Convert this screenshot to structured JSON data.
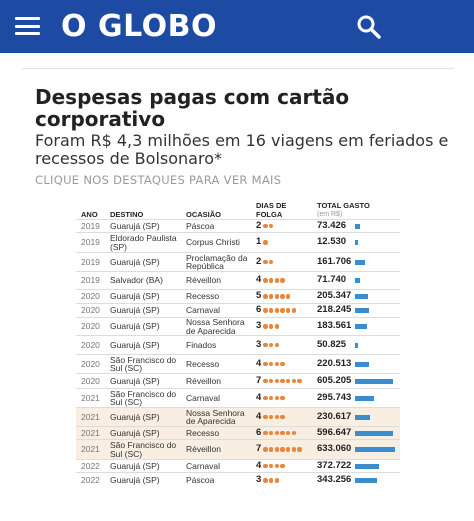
{
  "header": {
    "logo": "O GLOBO",
    "menu_icon": "hamburger-menu-icon",
    "search_icon": "search-icon",
    "bg_color": "#1d4ba3"
  },
  "article": {
    "title": "Despesas pagas com cartão corporativo",
    "subtitle": "Foram R$ 4,3 milhões em 16 viagens em feriados e recessos de Bolsonaro*",
    "hint": "CLIQUE NOS DESTAQUES PARA VER MAIS"
  },
  "table": {
    "columns": {
      "year": "ANO",
      "destination": "DESTINO",
      "occasion": "OCASIÃO",
      "days": "DIAS DE FOLGA",
      "total": "TOTAL GASTO",
      "total_unit": "(em R$)"
    },
    "colors": {
      "dot": "#e8863c",
      "bar": "#3a8ed0",
      "highlight": "#f8eee2"
    },
    "bar_max_value": 633060,
    "rows": [
      {
        "year": "2019",
        "destination": "Guarujá (SP)",
        "occasion": "Páscoa",
        "days": 2,
        "total": "73.426",
        "value": 73426,
        "highlight": false
      },
      {
        "year": "2019",
        "destination": "Eldorado Paulista (SP)",
        "occasion": "Corpus Christi",
        "days": 1,
        "total": "12.530",
        "value": 12530,
        "highlight": false
      },
      {
        "year": "2019",
        "destination": "Guarujá (SP)",
        "occasion": "Proclamação da República",
        "days": 2,
        "total": "161.706",
        "value": 161706,
        "highlight": false
      },
      {
        "year": "2019",
        "destination": "Salvador (BA)",
        "occasion": "Réveillon",
        "days": 4,
        "total": "71.740",
        "value": 71740,
        "highlight": false
      },
      {
        "year": "2020",
        "destination": "Guarujá (SP)",
        "occasion": "Recesso",
        "days": 5,
        "total": "205.347",
        "value": 205347,
        "highlight": false
      },
      {
        "year": "2020",
        "destination": "Guarujá (SP)",
        "occasion": "Carnaval",
        "days": 6,
        "total": "218.245",
        "value": 218245,
        "highlight": false
      },
      {
        "year": "2020",
        "destination": "Guarujá (SP)",
        "occasion": "Nossa Senhora de Aparecida",
        "days": 3,
        "total": "183.561",
        "value": 183561,
        "highlight": false
      },
      {
        "year": "2020",
        "destination": "Guarujá (SP)",
        "occasion": "Finados",
        "days": 3,
        "total": "50.825",
        "value": 50825,
        "highlight": false
      },
      {
        "year": "2020",
        "destination": "São Francisco do Sul (SC)",
        "occasion": "Recesso",
        "days": 4,
        "total": "220.513",
        "value": 220513,
        "highlight": false
      },
      {
        "year": "2020",
        "destination": "Guarujá (SP)",
        "occasion": "Réveillon",
        "days": 7,
        "total": "605.205",
        "value": 605205,
        "highlight": false
      },
      {
        "year": "2021",
        "destination": "São Francisco do Sul (SC)",
        "occasion": "Carnaval",
        "days": 4,
        "total": "295.743",
        "value": 295743,
        "highlight": false
      },
      {
        "year": "2021",
        "destination": "Guarujá (SP)",
        "occasion": "Nossa Senhora de Aparecida",
        "days": 4,
        "total": "230.617",
        "value": 230617,
        "highlight": true
      },
      {
        "year": "2021",
        "destination": "Guarujá (SP)",
        "occasion": "Recesso",
        "days": 6,
        "total": "596.647",
        "value": 596647,
        "highlight": true
      },
      {
        "year": "2021",
        "destination": "São Francisco do Sul (SC)",
        "occasion": "Réveillon",
        "days": 7,
        "total": "633.060",
        "value": 633060,
        "highlight": true
      },
      {
        "year": "2022",
        "destination": "Guarujá (SP)",
        "occasion": "Carnaval",
        "days": 4,
        "total": "372.722",
        "value": 372722,
        "highlight": false
      },
      {
        "year": "2022",
        "destination": "Guarujá (SP)",
        "occasion": "Páscoa",
        "days": 3,
        "total": "343.256",
        "value": 343256,
        "highlight": false
      }
    ]
  }
}
